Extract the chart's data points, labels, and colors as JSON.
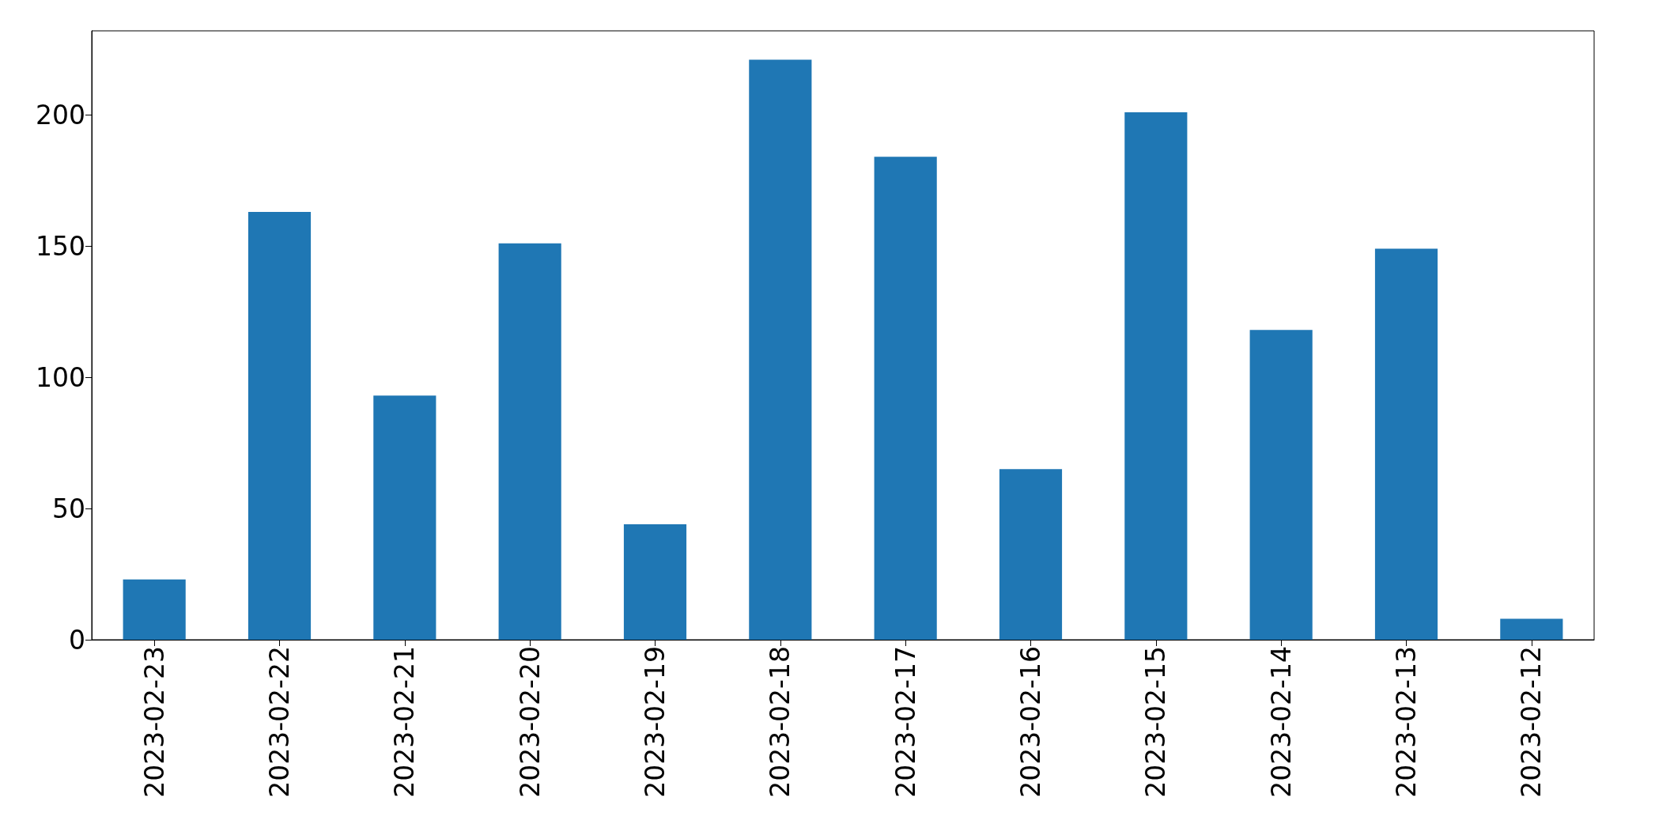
{
  "chart_data": {
    "type": "bar",
    "categories": [
      "2023-02-23",
      "2023-02-22",
      "2023-02-21",
      "2023-02-20",
      "2023-02-19",
      "2023-02-18",
      "2023-02-17",
      "2023-02-16",
      "2023-02-15",
      "2023-02-14",
      "2023-02-13",
      "2023-02-12"
    ],
    "values": [
      23,
      163,
      93,
      151,
      44,
      221,
      184,
      65,
      201,
      118,
      149,
      8
    ],
    "color": "#1f77b4",
    "ylim": [
      0,
      232
    ],
    "yticks": [
      0,
      50,
      100,
      150,
      200
    ]
  }
}
